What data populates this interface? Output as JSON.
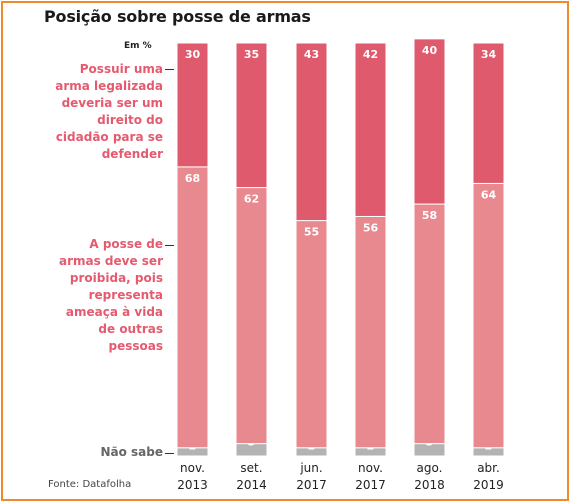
{
  "title": "Posição sobre posse de armas",
  "unit": "Em %",
  "source": "Fonte: Datafolha",
  "chart_data": {
    "type": "bar",
    "stacked": true,
    "categories": [
      [
        "nov.",
        "2013"
      ],
      [
        "set.",
        "2014"
      ],
      [
        "jun.",
        "2017"
      ],
      [
        "nov.",
        "2017"
      ],
      [
        "ago.",
        "2018"
      ],
      [
        "abr.",
        "2019"
      ]
    ],
    "series": [
      {
        "name": "Não sabe",
        "label_lines": [
          "Não sabe"
        ],
        "values": [
          2,
          3,
          2,
          2,
          3,
          2
        ],
        "color": "#b3b3b3"
      },
      {
        "name": "A posse de armas deve ser proibida, pois representa ameaça à vida de outras pessoas",
        "label_lines": [
          "A posse de",
          "armas deve ser",
          "proibida, pois",
          "representa",
          "ameaça à vida",
          "de outras",
          "pessoas"
        ],
        "values": [
          68,
          62,
          55,
          56,
          58,
          64
        ],
        "color": "#e8888f"
      },
      {
        "name": "Possuir uma arma legalizada deveria ser um direito do cidadão para se defender",
        "label_lines": [
          "Possuir uma",
          "arma legalizada",
          "deveria ser um",
          "direito do",
          "cidadão para se",
          "defender"
        ],
        "values": [
          30,
          35,
          43,
          42,
          40,
          34
        ],
        "color": "#de5a6c"
      }
    ],
    "ylim": [
      0,
      100
    ],
    "grid": false,
    "legend": "left, labels next to the bars",
    "data_labels": true
  }
}
